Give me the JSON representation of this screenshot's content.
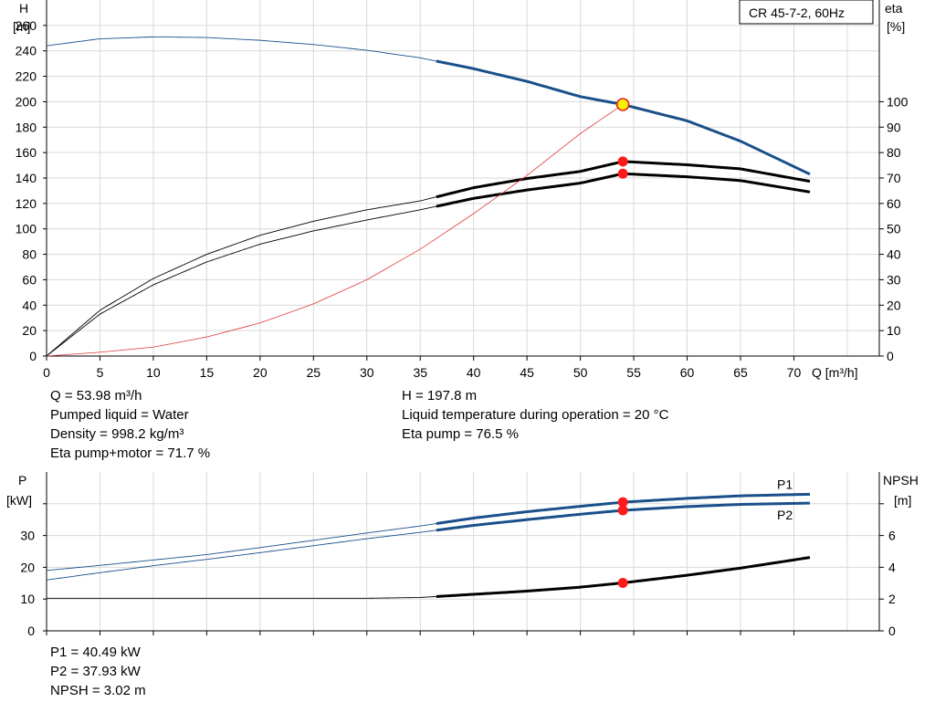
{
  "chart_data": [
    {
      "type": "line",
      "title": "CR 45-7-2, 60Hz",
      "xlabel": "Q [m³/h]",
      "ylabel": [
        "H",
        "[m]"
      ],
      "y2label": [
        "eta",
        "[%]"
      ],
      "xlim": [
        0,
        78
      ],
      "ylim": [
        0,
        280
      ],
      "y2lim": [
        0,
        100
      ],
      "xticks": [
        "0",
        "5",
        "10",
        "15",
        "20",
        "25",
        "30",
        "35",
        "40",
        "45",
        "50",
        "55",
        "60",
        "65",
        "70"
      ],
      "yticks": [
        "0",
        "20",
        "40",
        "60",
        "80",
        "100",
        "120",
        "140",
        "160",
        "180",
        "200",
        "220",
        "240",
        "260"
      ],
      "y2ticks": [
        "0",
        "10",
        "20",
        "30",
        "40",
        "50",
        "60",
        "70",
        "80",
        "90",
        "100"
      ],
      "grid": true,
      "allowed_range": [
        36.5,
        71.5
      ],
      "series": [
        {
          "role": "H",
          "axis": "left",
          "color": "#1a4f8a",
          "x": [
            0,
            5,
            10,
            15,
            20,
            25,
            30,
            35,
            40,
            45,
            50,
            53.98,
            60,
            65,
            71.5
          ],
          "y": [
            244,
            249.5,
            251,
            250.5,
            248.3,
            245,
            240.5,
            234.5,
            226,
            216,
            204,
            197.8,
            185,
            169,
            143
          ]
        },
        {
          "role": "eta pump",
          "axis": "right",
          "color": "#000000",
          "x": [
            0,
            5,
            10,
            15,
            20,
            25,
            30,
            35,
            40,
            45,
            50,
            53.98,
            60,
            65,
            71.5
          ],
          "y": [
            0,
            18,
            30.5,
            40,
            47.5,
            53,
            57.5,
            61,
            66.2,
            69.8,
            72.6,
            76.5,
            75.2,
            73.6,
            68.7
          ]
        },
        {
          "role": "eta pump+motor",
          "axis": "right",
          "color": "#000000",
          "x": [
            0,
            5,
            10,
            15,
            20,
            25,
            30,
            35,
            40,
            45,
            50,
            53.98,
            60,
            65,
            71.5
          ],
          "y": [
            0,
            16.5,
            28,
            37,
            44,
            49.2,
            53.5,
            57.5,
            62,
            65.3,
            68,
            71.7,
            70.5,
            69,
            64.5
          ]
        },
        {
          "role": "system curve",
          "axis": "left",
          "color": "#e03a3a",
          "style": "thin",
          "x": [
            0,
            5,
            10,
            15,
            20,
            25,
            30,
            35,
            40,
            45,
            50,
            53.98
          ],
          "y": [
            0,
            3,
            7,
            15,
            26,
            41,
            60,
            84,
            112,
            142,
            175,
            197.8
          ]
        }
      ],
      "duty_point": {
        "x": 53.98,
        "H": 197.8,
        "eta_pump": 76.5,
        "eta_total": 71.7
      }
    },
    {
      "type": "line",
      "xlabel": "",
      "ylabel": [
        "P",
        "[kW]"
      ],
      "y2label": [
        "NPSH",
        "[m]"
      ],
      "xlim": [
        0,
        78
      ],
      "ylim": [
        0,
        40
      ],
      "y2lim": [
        0,
        8
      ],
      "yticks": [
        "0",
        "10",
        "20",
        "30"
      ],
      "y2ticks": [
        "0",
        "2",
        "4",
        "6"
      ],
      "grid": true,
      "allowed_range": [
        36.5,
        71.5
      ],
      "series": [
        {
          "name": "P1",
          "axis": "left",
          "color": "#1a4f8a",
          "x": [
            0,
            5,
            10,
            15,
            20,
            25,
            30,
            35,
            40,
            45,
            50,
            53.98,
            60,
            65,
            71.5
          ],
          "y": [
            19,
            20.6,
            22.3,
            24,
            26.2,
            28.5,
            30.8,
            33,
            35.5,
            37.5,
            39.2,
            40.49,
            41.7,
            42.5,
            43
          ]
        },
        {
          "name": "P2",
          "axis": "left",
          "color": "#1a4f8a",
          "x": [
            0,
            5,
            10,
            15,
            20,
            25,
            30,
            35,
            40,
            45,
            50,
            53.98,
            60,
            65,
            71.5
          ],
          "y": [
            16,
            18.3,
            20.5,
            22.5,
            24.6,
            26.8,
            29,
            31,
            33.2,
            35,
            36.7,
            37.93,
            39.1,
            39.8,
            40.2
          ]
        },
        {
          "role": "NPSH",
          "axis": "right",
          "color": "#000000",
          "x": [
            0,
            5,
            10,
            15,
            20,
            25,
            30,
            35,
            40,
            45,
            50,
            53.98,
            60,
            65,
            71.5
          ],
          "y": [
            2.05,
            2.05,
            2.05,
            2.05,
            2.05,
            2.05,
            2.05,
            2.1,
            2.3,
            2.5,
            2.75,
            3.02,
            3.5,
            3.95,
            4.62
          ]
        }
      ],
      "duty_point": {
        "x": 53.98,
        "P1": 40.49,
        "P2": 37.93,
        "NPSH": 3.02
      }
    }
  ],
  "readout_top": {
    "left": [
      "Q = 53.98 m³/h",
      "Pumped liquid = Water",
      "Density = 998.2 kg/m³",
      "Eta pump+motor = 71.7 %"
    ],
    "right": [
      "H = 197.8 m",
      "Liquid temperature during operation = 20 °C",
      "Eta pump = 76.5 %"
    ]
  },
  "readout_bottom": [
    "P1 = 40.49 kW",
    "P2 = 37.93 kW",
    "NPSH = 3.02 m"
  ]
}
